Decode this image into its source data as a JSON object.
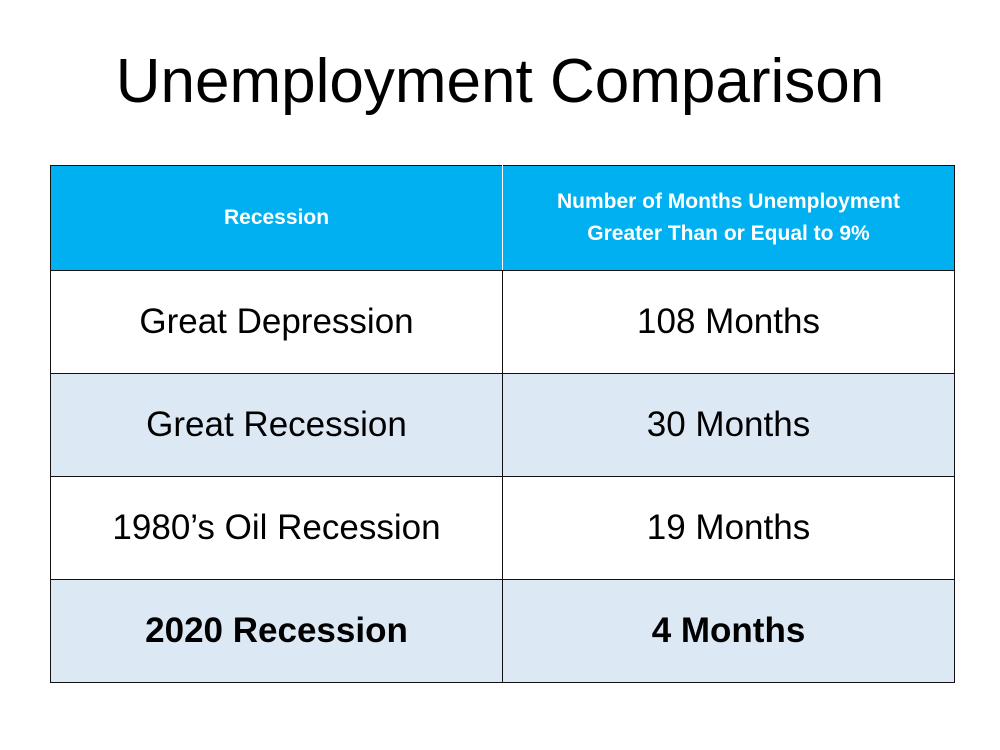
{
  "header": {
    "title": "Unemployment Comparison"
  },
  "table": {
    "columns": [
      "Recession",
      "Number of Months Unemployment Greater Than or Equal to 9%"
    ],
    "rows": [
      [
        "Great Depression",
        "108 Months"
      ],
      [
        "Great Recession",
        "30 Months"
      ],
      [
        "1980’s Oil Recession",
        "19 Months"
      ],
      [
        "2020 Recession",
        "4 Months"
      ]
    ]
  }
}
